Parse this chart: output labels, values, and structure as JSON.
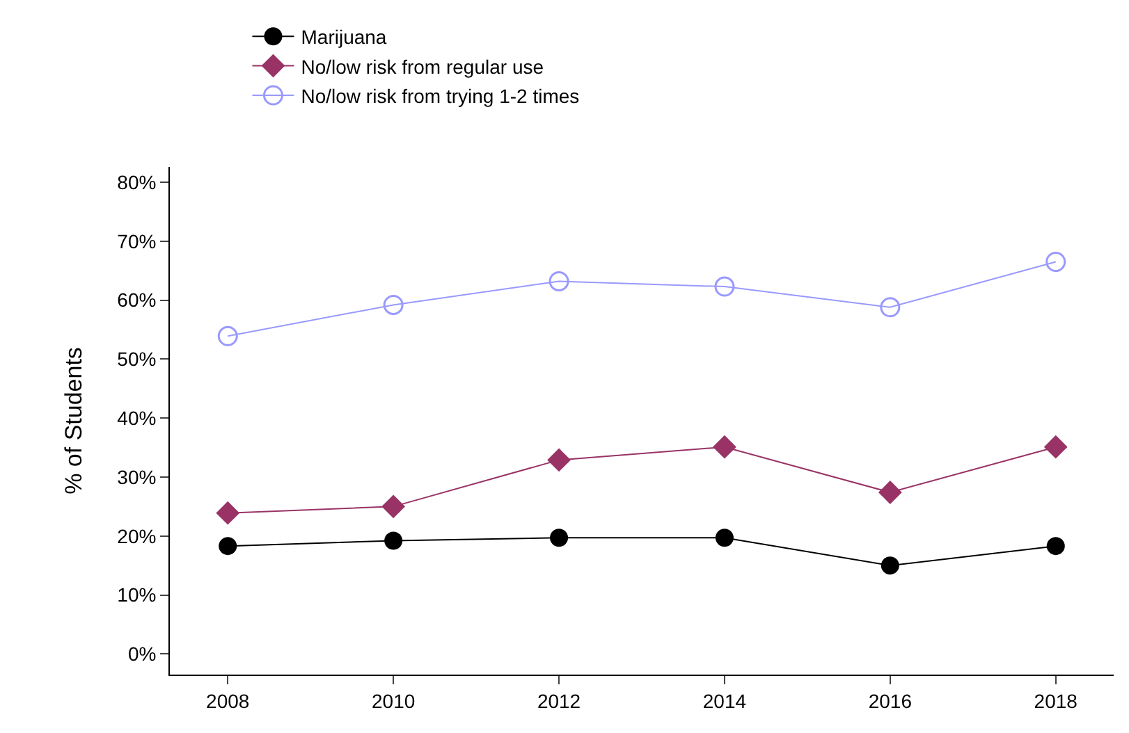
{
  "chart_data": {
    "type": "line",
    "ylabel": "% of Students",
    "x": [
      2008,
      2010,
      2012,
      2014,
      2016,
      2018
    ],
    "series": [
      {
        "name": "Marijuana",
        "color": "#000000",
        "marker": "circle",
        "values": [
          18.3,
          19.2,
          19.7,
          19.7,
          15.0,
          18.3
        ]
      },
      {
        "name": "No/low risk from regular use",
        "color": "#993366",
        "marker": "diamond",
        "values": [
          23.9,
          25.0,
          32.9,
          35.1,
          27.4,
          35.1
        ]
      },
      {
        "name": "No/low risk from trying 1-2 times",
        "color": "#9999ff",
        "marker": "circle",
        "values": [
          53.9,
          59.2,
          63.2,
          62.3,
          58.8,
          66.5
        ]
      }
    ],
    "xlim": [
      2007.3,
      2018.7
    ],
    "xticks": [
      2008,
      2010,
      2012,
      2014,
      2016,
      2018
    ],
    "ylim": [
      -3.5,
      82.6
    ],
    "yticks": [
      {
        "value": 0,
        "label": "0%"
      },
      {
        "value": 10,
        "label": "10%"
      },
      {
        "value": 20,
        "label": "20%"
      },
      {
        "value": 30,
        "label": "30%"
      },
      {
        "value": 40,
        "label": "40%"
      },
      {
        "value": 50,
        "label": "50%"
      },
      {
        "value": 60,
        "label": "60%"
      },
      {
        "value": 70,
        "label": "70%"
      },
      {
        "value": 80,
        "label": "80%"
      }
    ],
    "grid": false,
    "legend": "top",
    "line_style": "solid"
  }
}
